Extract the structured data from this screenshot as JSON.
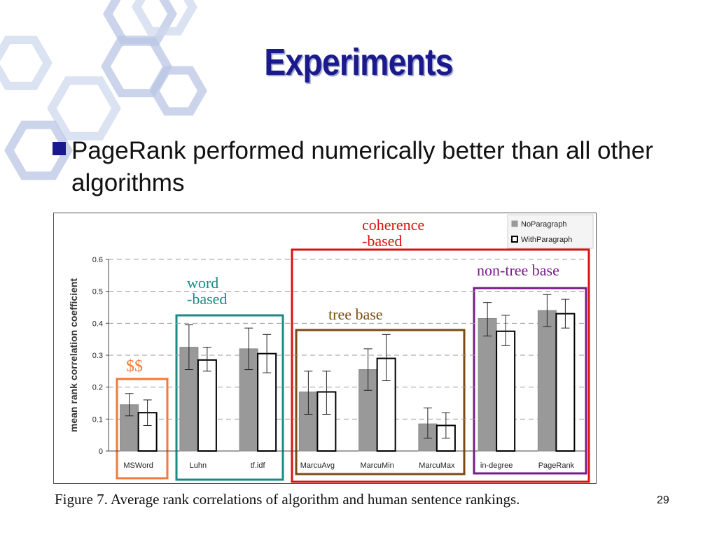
{
  "slide": {
    "title": "Experiments",
    "bullet": "PageRank performed numerically better than all other algorithms",
    "caption": "Figure 7.  Average rank correlations of algorithm and human sentence rankings.",
    "page_number": "29"
  },
  "chart_data": {
    "type": "bar",
    "ylabel": "mean rank correlation coefficient",
    "ylim": [
      0,
      0.6
    ],
    "yticks": [
      0,
      0.1,
      0.2,
      0.3,
      0.4,
      0.5,
      0.6
    ],
    "ytick_labels": [
      "0",
      "0.1",
      "0.2",
      "0.3",
      "0.4",
      "0.5",
      "0.6"
    ],
    "grid": "horizontal dashed",
    "legend_position": "top-right",
    "categories": [
      "MSWord",
      "Luhn",
      "tf.idf",
      "MarcuAvg",
      "MarcuMin",
      "MarcuMax",
      "in-degree",
      "PageRank"
    ],
    "series": [
      {
        "name": "NoParagraph",
        "color": "#999999",
        "values": [
          0.145,
          0.325,
          0.32,
          0.185,
          0.255,
          0.085,
          0.415,
          0.44
        ],
        "error_low": [
          0.11,
          0.255,
          0.255,
          0.115,
          0.19,
          0.04,
          0.36,
          0.39
        ],
        "error_high": [
          0.18,
          0.395,
          0.385,
          0.25,
          0.32,
          0.135,
          0.465,
          0.49
        ]
      },
      {
        "name": "WithParagraph",
        "color": "#ffffff",
        "values": [
          0.12,
          0.285,
          0.305,
          0.185,
          0.29,
          0.08,
          0.375,
          0.43
        ],
        "error_low": [
          0.08,
          0.25,
          0.245,
          0.115,
          0.22,
          0.04,
          0.33,
          0.385
        ],
        "error_high": [
          0.16,
          0.325,
          0.365,
          0.25,
          0.365,
          0.12,
          0.425,
          0.475
        ]
      }
    ],
    "annotations": [
      {
        "id": "dollars",
        "text": "$$",
        "color": "#f07a3a"
      },
      {
        "id": "word",
        "text": "word\n-based",
        "color": "#1b8a86"
      },
      {
        "id": "coherence",
        "text": "coherence\n-based",
        "color": "#dd1111"
      },
      {
        "id": "tree",
        "text": "tree base",
        "color": "#7a4a10"
      },
      {
        "id": "nontree",
        "text": "non-tree base",
        "color": "#7a1a8a"
      }
    ]
  }
}
